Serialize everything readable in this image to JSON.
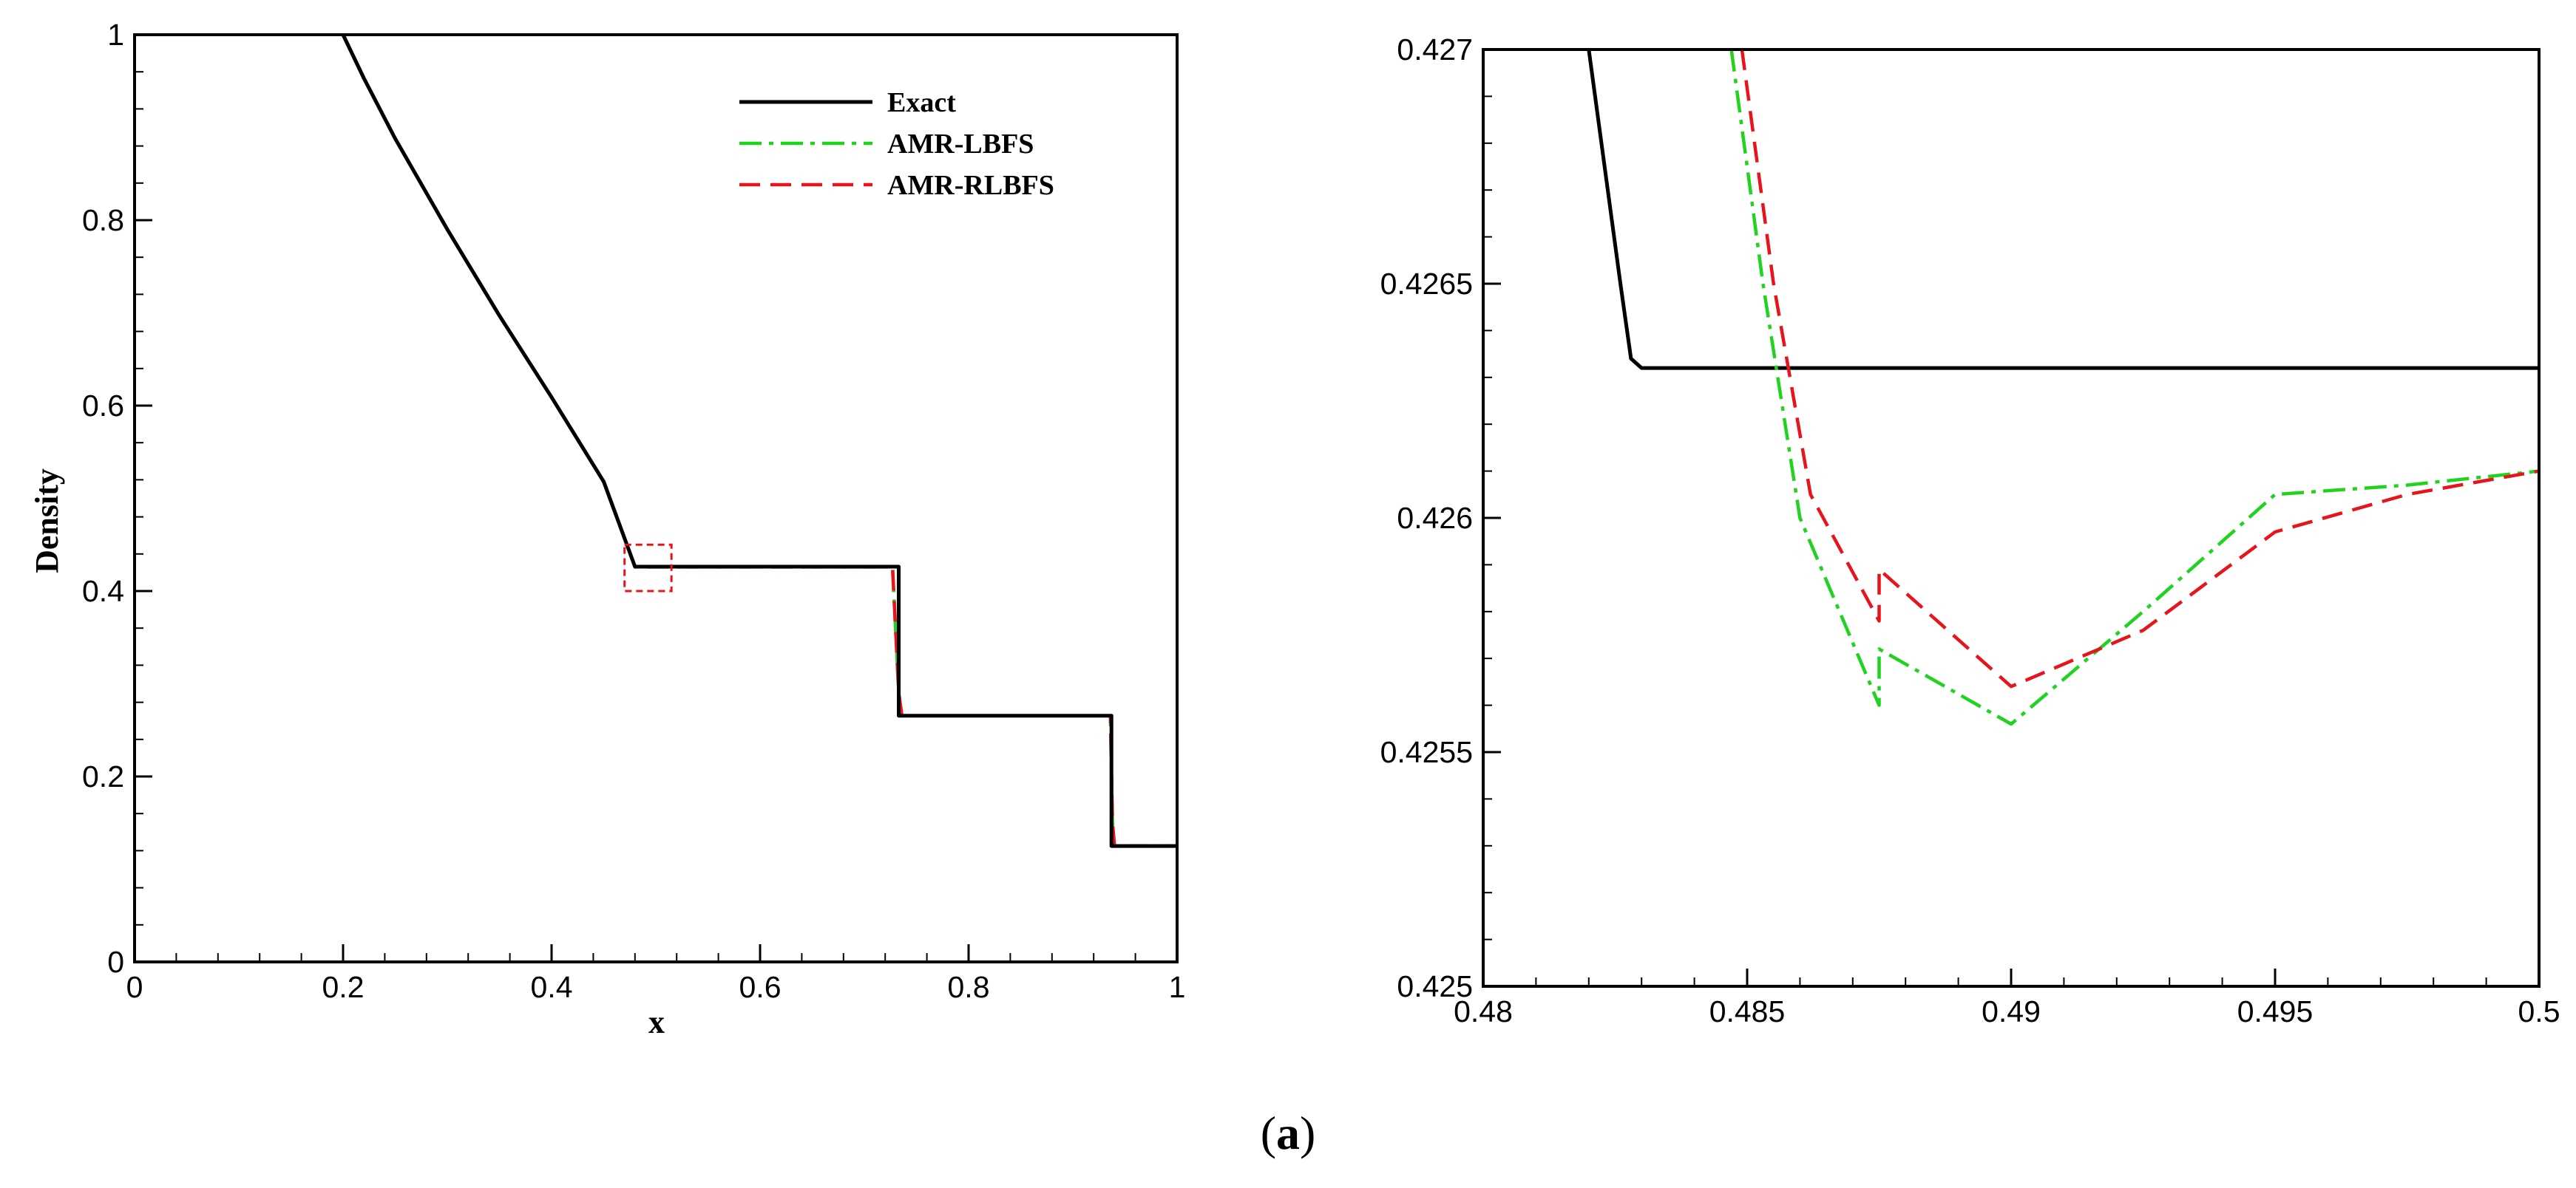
{
  "caption": {
    "open": "(",
    "letter": "a",
    "close": ")"
  },
  "chart_data": [
    {
      "type": "line",
      "title": "",
      "xlabel": "x",
      "ylabel": "Density",
      "xlim": [
        0,
        1
      ],
      "ylim": [
        0,
        1
      ],
      "x_ticks": [
        "0",
        "0.2",
        "0.4",
        "0.6",
        "0.8",
        "1"
      ],
      "y_ticks": [
        "0",
        "0.2",
        "0.4",
        "0.6",
        "0.8",
        "1"
      ],
      "grid": false,
      "legend_position": "top-right",
      "zoom_box": {
        "x": [
          0.47,
          0.515
        ],
        "y": [
          0.4,
          0.45
        ],
        "color": "#e8141c"
      },
      "series": [
        {
          "name": "Exact",
          "color": "#000000",
          "style": "solid",
          "points": [
            [
              0.2,
              1.0
            ],
            [
              0.22,
              0.953
            ],
            [
              0.25,
              0.888
            ],
            [
              0.3,
              0.79
            ],
            [
              0.35,
              0.697
            ],
            [
              0.4,
              0.609
            ],
            [
              0.45,
              0.518
            ],
            [
              0.48,
              0.4263
            ],
            [
              0.733,
              0.4263
            ],
            [
              0.733,
              0.2656
            ],
            [
              0.937,
              0.2656
            ],
            [
              0.937,
              0.125
            ],
            [
              1.0,
              0.125
            ]
          ]
        },
        {
          "name": "AMR-LBFS",
          "color": "#1fd31f",
          "style": "dashdot",
          "points": [
            [
              0.2,
              1.0
            ],
            [
              0.22,
              0.953
            ],
            [
              0.25,
              0.888
            ],
            [
              0.3,
              0.79
            ],
            [
              0.35,
              0.697
            ],
            [
              0.4,
              0.609
            ],
            [
              0.45,
              0.518
            ],
            [
              0.48,
              0.426
            ],
            [
              0.727,
              0.426
            ],
            [
              0.733,
              0.29
            ],
            [
              0.736,
              0.2656
            ],
            [
              0.936,
              0.2656
            ],
            [
              0.938,
              0.15
            ],
            [
              0.94,
              0.125
            ],
            [
              1.0,
              0.125
            ]
          ]
        },
        {
          "name": "AMR-RLBFS",
          "color": "#e8141c",
          "style": "dashed",
          "points": [
            [
              0.2,
              1.0
            ],
            [
              0.22,
              0.953
            ],
            [
              0.25,
              0.888
            ],
            [
              0.3,
              0.79
            ],
            [
              0.35,
              0.697
            ],
            [
              0.4,
              0.609
            ],
            [
              0.45,
              0.518
            ],
            [
              0.48,
              0.426
            ],
            [
              0.727,
              0.426
            ],
            [
              0.733,
              0.29
            ],
            [
              0.736,
              0.2656
            ],
            [
              0.936,
              0.2656
            ],
            [
              0.938,
              0.15
            ],
            [
              0.94,
              0.125
            ],
            [
              1.0,
              0.125
            ]
          ]
        }
      ]
    },
    {
      "type": "line",
      "title": "",
      "xlabel": "",
      "ylabel": "",
      "xlim": [
        0.48,
        0.5
      ],
      "ylim": [
        0.425,
        0.427
      ],
      "x_ticks": [
        "0.48",
        "0.485",
        "0.49",
        "0.495",
        "0.5"
      ],
      "y_ticks": [
        "0.425",
        "0.4255",
        "0.426",
        "0.4265",
        "0.427"
      ],
      "grid": false,
      "series": [
        {
          "name": "Exact",
          "color": "#000000",
          "style": "solid",
          "points": [
            [
              0.482,
              0.427
            ],
            [
              0.4823,
              0.42675
            ],
            [
              0.4826,
              0.4265
            ],
            [
              0.4828,
              0.42634
            ],
            [
              0.483,
              0.42632
            ],
            [
              0.5,
              0.42632
            ]
          ]
        },
        {
          "name": "AMR-LBFS",
          "color": "#1fd31f",
          "style": "dashdot",
          "points": [
            [
              0.4847,
              0.427
            ],
            [
              0.4853,
              0.4265
            ],
            [
              0.486,
              0.426
            ],
            [
              0.4875,
              0.4256
            ],
            [
              0.4875,
              0.42572
            ],
            [
              0.49,
              0.42556
            ],
            [
              0.4925,
              0.4258
            ],
            [
              0.495,
              0.42605
            ],
            [
              0.4975,
              0.42607
            ],
            [
              0.5,
              0.4261
            ]
          ]
        },
        {
          "name": "AMR-RLBFS",
          "color": "#e8141c",
          "style": "dashed",
          "points": [
            [
              0.4849,
              0.427
            ],
            [
              0.4855,
              0.4265
            ],
            [
              0.4862,
              0.42605
            ],
            [
              0.4875,
              0.42578
            ],
            [
              0.4875,
              0.42589
            ],
            [
              0.49,
              0.42564
            ],
            [
              0.4925,
              0.42576
            ],
            [
              0.495,
              0.42597
            ],
            [
              0.4975,
              0.42605
            ],
            [
              0.5,
              0.4261
            ]
          ]
        }
      ]
    }
  ]
}
